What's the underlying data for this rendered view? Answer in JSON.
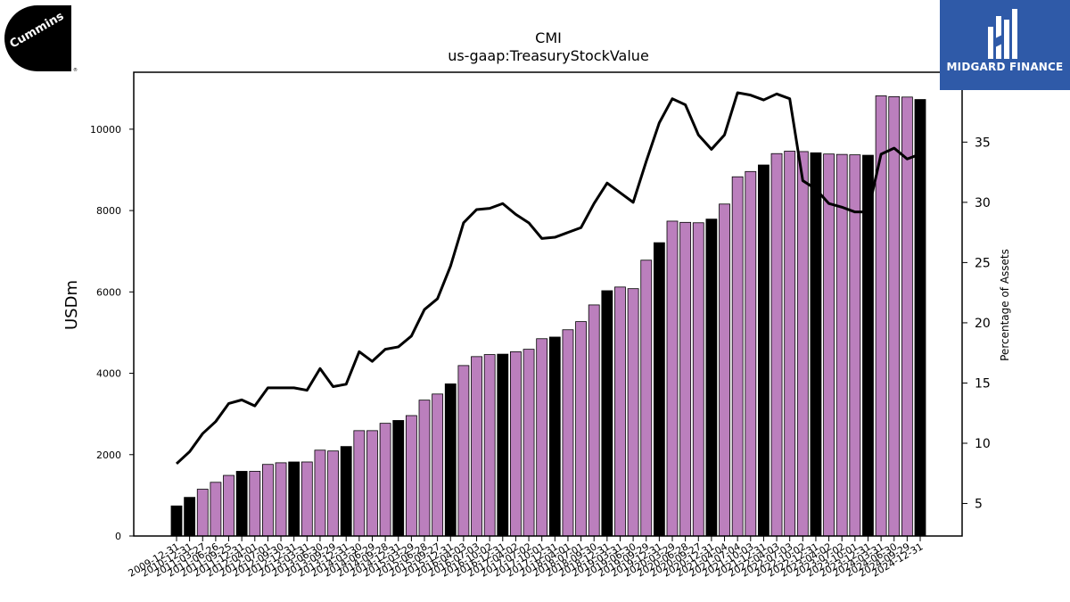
{
  "chart_data": {
    "type": "bar",
    "title": "CMI",
    "subtitle": "us-gaap:TreasuryStockValue",
    "ylabel": "USDm",
    "y2label": "Percentage of Assets",
    "ylim": [
      0,
      11400
    ],
    "y2lim": [
      2.3,
      40.8
    ],
    "yticks": [
      0,
      2000,
      4000,
      6000,
      8000,
      10000
    ],
    "y2ticks": [
      5,
      10,
      15,
      20,
      25,
      30,
      35
    ],
    "categories": [
      "2009-12-31",
      "2010-12-31",
      "2011-03-27",
      "2011-06-26",
      "2011-09-25",
      "2011-12-31",
      "2012-04-01",
      "2012-07-01",
      "2012-09-30",
      "2012-12-31",
      "2013-03-31",
      "2013-06-30",
      "2013-09-29",
      "2013-12-31",
      "2014-03-30",
      "2014-06-29",
      "2014-09-28",
      "2014-12-31",
      "2015-03-29",
      "2015-06-28",
      "2015-09-27",
      "2015-12-31",
      "2016-04-03",
      "2016-07-03",
      "2016-10-02",
      "2016-12-31",
      "2017-04-02",
      "2017-07-02",
      "2017-10-01",
      "2017-12-31",
      "2018-04-01",
      "2018-07-01",
      "2018-09-30",
      "2018-12-31",
      "2019-03-31",
      "2019-06-30",
      "2019-09-29",
      "2019-12-31",
      "2020-03-29",
      "2020-06-28",
      "2020-09-27",
      "2020-12-31",
      "2021-04-04",
      "2021-07-04",
      "2021-10-03",
      "2021-12-31",
      "2022-04-03",
      "2022-07-03",
      "2022-10-02",
      "2022-12-31",
      "2023-04-02",
      "2023-07-02",
      "2023-10-01",
      "2023-12-31",
      "2024-03-31",
      "2024-06-30",
      "2024-09-29",
      "2024-12-31"
    ],
    "series": [
      {
        "type": "bar",
        "values": [
          740,
          950,
          1150,
          1320,
          1490,
          1590,
          1590,
          1760,
          1800,
          1820,
          1820,
          2110,
          2090,
          2200,
          2590,
          2590,
          2770,
          2840,
          2960,
          3340,
          3490,
          3740,
          4190,
          4410,
          4460,
          4470,
          4530,
          4590,
          4850,
          4890,
          5070,
          5270,
          5680,
          6030,
          6120,
          6080,
          6780,
          7210,
          7740,
          7710,
          7700,
          7790,
          8160,
          8830,
          8960,
          9120,
          9400,
          9460,
          9450,
          9420,
          9390,
          9380,
          9370,
          9360,
          10820,
          10800,
          10790,
          10730
        ]
      },
      {
        "type": "line",
        "axis": "right",
        "values": [
          8.3,
          9.3,
          10.8,
          11.8,
          13.3,
          13.6,
          13.1,
          14.6,
          14.6,
          14.6,
          14.4,
          16.2,
          14.7,
          14.9,
          17.6,
          16.8,
          17.8,
          18.0,
          18.9,
          21.1,
          22.0,
          24.7,
          28.3,
          29.4,
          29.5,
          29.9,
          29.0,
          28.3,
          27.0,
          27.1,
          27.5,
          27.9,
          29.9,
          31.6,
          30.8,
          30.0,
          33.4,
          36.6,
          38.6,
          38.1,
          35.6,
          34.4,
          35.6,
          39.1,
          38.9,
          38.5,
          39.0,
          38.6,
          31.8,
          31.1,
          29.9,
          29.6,
          29.2,
          29.2,
          34.0,
          34.5,
          33.6,
          34.0
        ]
      }
    ],
    "colors": {
      "bar_light": "#bb7fbd",
      "bar_dark": "#000000",
      "line": "#000000",
      "logo_right_bg": "#2f5aa8"
    }
  },
  "logos": {
    "left_brand": "Cummins",
    "right_brand": "MIDGARD FINANCE"
  }
}
